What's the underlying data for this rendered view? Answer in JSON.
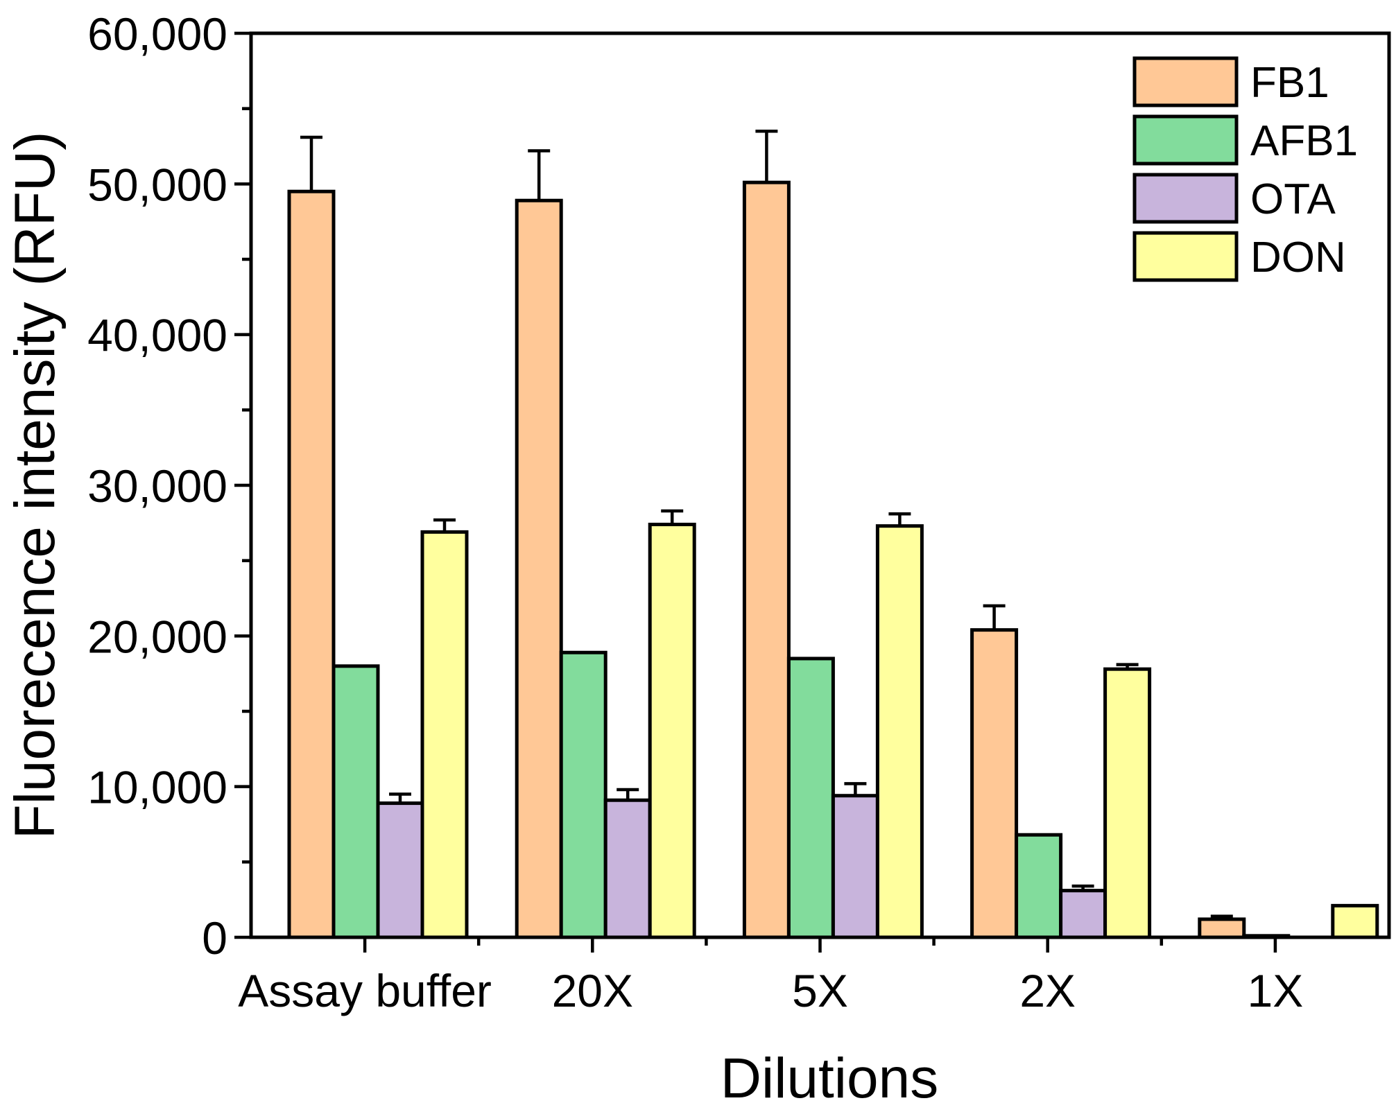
{
  "chart_data": {
    "type": "bar",
    "title": "",
    "xlabel": "Dilutions",
    "ylabel": "Fluorecence intensity (RFU)",
    "ylim": [
      0,
      60000
    ],
    "yticks": [
      0,
      10000,
      20000,
      30000,
      40000,
      50000,
      60000
    ],
    "ytick_labels": [
      "0",
      "10,000",
      "20,000",
      "30,000",
      "40,000",
      "50,000",
      "60,000"
    ],
    "categories": [
      "Assay buffer",
      "20X",
      "5X",
      "2X",
      "1X"
    ],
    "series": [
      {
        "name": "FB1",
        "color": "#FFC896",
        "values": [
          49500,
          48900,
          50100,
          20400,
          1200
        ],
        "errors": [
          3600,
          3300,
          3400,
          1600,
          200
        ]
      },
      {
        "name": "AFB1",
        "color": "#82DC9C",
        "values": [
          18000,
          18900,
          18500,
          6800,
          100
        ],
        "errors": [
          0,
          0,
          0,
          0,
          0
        ]
      },
      {
        "name": "OTA",
        "color": "#C8B4DC",
        "values": [
          8900,
          9100,
          9400,
          3100,
          0
        ],
        "errors": [
          600,
          700,
          800,
          300,
          0
        ]
      },
      {
        "name": "DON",
        "color": "#FFFF9E",
        "values": [
          26900,
          27400,
          27300,
          17800,
          2100
        ],
        "errors": [
          800,
          900,
          800,
          300,
          0
        ]
      }
    ],
    "legend_position": "top-right",
    "grid": false,
    "error_bars": true
  }
}
